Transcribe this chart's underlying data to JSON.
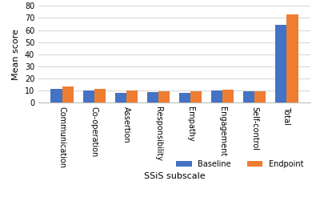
{
  "categories": [
    "Communication",
    "Co-operation",
    "Assertion",
    "Responsibility",
    "Empathy",
    "Engagement",
    "Self-control",
    "Total"
  ],
  "baseline": [
    11,
    10,
    8,
    8.5,
    8,
    10,
    9,
    64
  ],
  "endpoint": [
    13,
    11,
    10,
    9.5,
    9.5,
    10.5,
    9.5,
    73
  ],
  "baseline_color": "#4472C4",
  "endpoint_color": "#ED7D31",
  "xlabel": "SSiS subscale",
  "ylabel": "Mean score",
  "ylim": [
    0,
    80
  ],
  "yticks": [
    0,
    10,
    20,
    30,
    40,
    50,
    60,
    70,
    80
  ],
  "legend_labels": [
    "Baseline",
    "Endpoint"
  ],
  "background_color": "#FFFFFF",
  "bar_width": 0.35,
  "grid_color": "#D9D9D9",
  "xlabel_fontsize": 8,
  "ylabel_fontsize": 8,
  "tick_fontsize": 7,
  "legend_fontsize": 7
}
